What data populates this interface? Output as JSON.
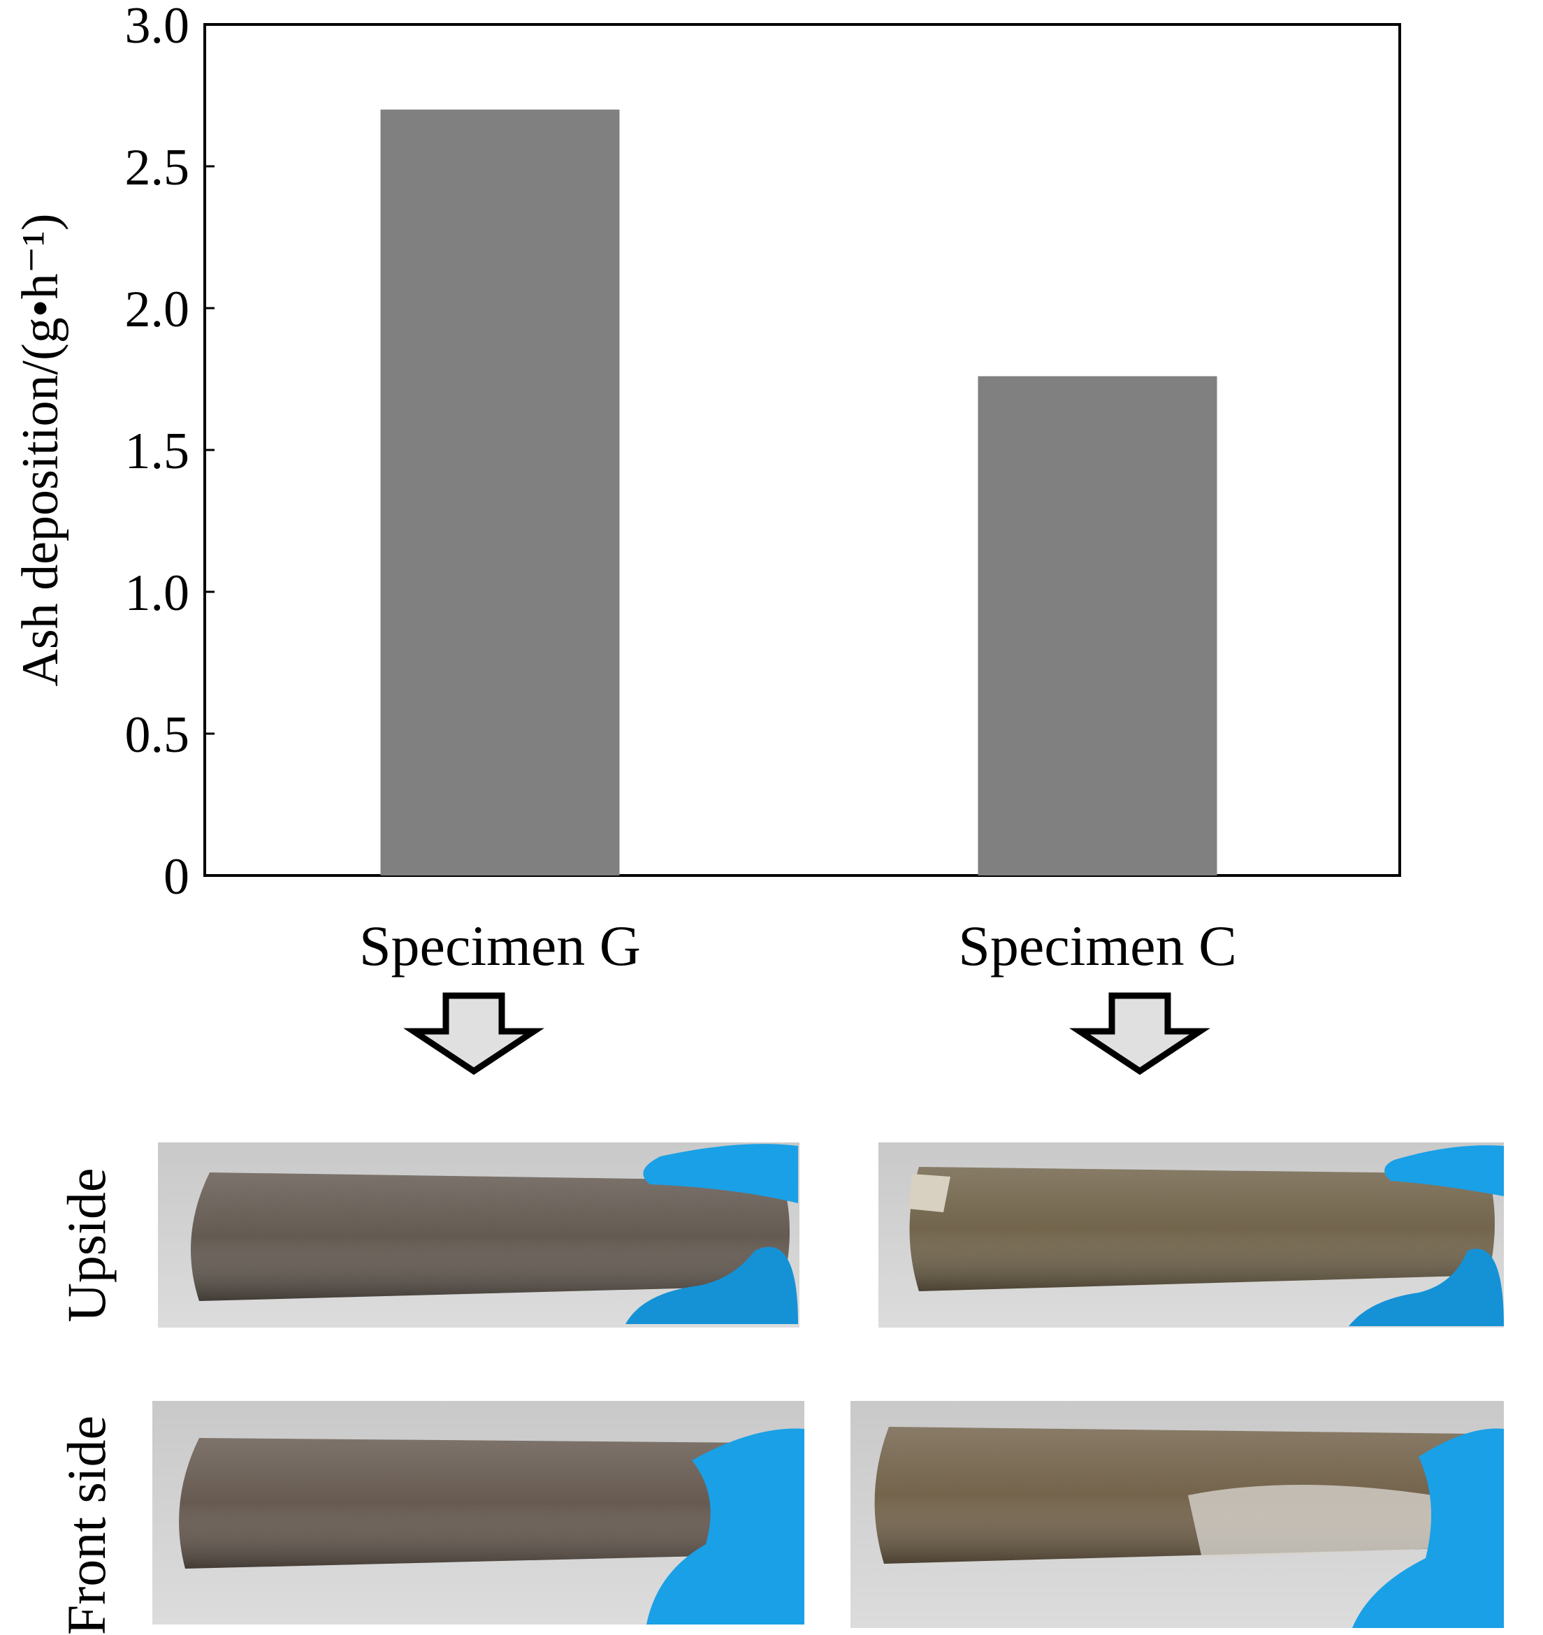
{
  "chart_data": {
    "type": "bar",
    "title": "",
    "xlabel": "",
    "ylabel": "Ash deposition/(g•h⁻¹)",
    "categories": [
      "Specimen G",
      "Specimen C"
    ],
    "values": [
      2.7,
      1.76
    ],
    "ylim": [
      0,
      3.0
    ],
    "yticks": [
      0,
      0.5,
      1.0,
      1.5,
      2.0,
      2.5,
      3.0
    ],
    "ytick_labels": [
      "0",
      "0.5",
      "1.0",
      "1.5",
      "2.0",
      "2.5",
      "3.0"
    ],
    "grid": false,
    "bar_color": "#808080"
  },
  "photos": {
    "row_labels": [
      "Upside",
      "Front side"
    ],
    "deposit_color_g": "#6e645a",
    "deposit_color_c": "#7a6c52",
    "glove_color": "#1aa0e6"
  }
}
